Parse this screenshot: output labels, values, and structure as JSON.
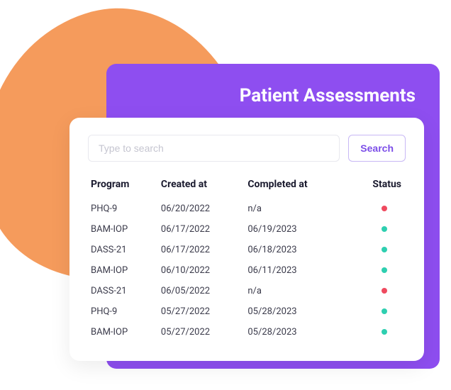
{
  "colors": {
    "blob": "#f59b5c",
    "purple_card": "#8e4ef0",
    "white_card": "#ffffff",
    "search_border": "#e8e8ee",
    "search_placeholder": "#c5c5d0",
    "btn_border": "#c8b8f5",
    "btn_text": "#7b4de8",
    "text_heading": "#1a1a2e",
    "text_body": "#3a3a4a",
    "status_red": "#ef4a5f",
    "status_green": "#2ecfb0"
  },
  "header": {
    "title": "Patient Assessments"
  },
  "search": {
    "placeholder": "Type to search",
    "button_label": "Search"
  },
  "table": {
    "columns": [
      "Program",
      "Created at",
      "Completed at",
      "Status"
    ],
    "rows": [
      {
        "program": "PHQ-9",
        "created": "06/20/2022",
        "completed": "n/a",
        "status_color": "#ef4a5f"
      },
      {
        "program": "BAM-IOP",
        "created": "06/17/2022",
        "completed": "06/19/2023",
        "status_color": "#2ecfb0"
      },
      {
        "program": "DASS-21",
        "created": "06/17/2022",
        "completed": "06/18/2023",
        "status_color": "#2ecfb0"
      },
      {
        "program": "BAM-IOP",
        "created": "06/10/2022",
        "completed": "06/11/2023",
        "status_color": "#2ecfb0"
      },
      {
        "program": "DASS-21",
        "created": "06/05/2022",
        "completed": "n/a",
        "status_color": "#ef4a5f"
      },
      {
        "program": "PHQ-9",
        "created": "05/27/2022",
        "completed": "05/28/2023",
        "status_color": "#2ecfb0"
      },
      {
        "program": "BAM-IOP",
        "created": "05/27/2022",
        "completed": "05/28/2023",
        "status_color": "#2ecfb0"
      }
    ]
  }
}
